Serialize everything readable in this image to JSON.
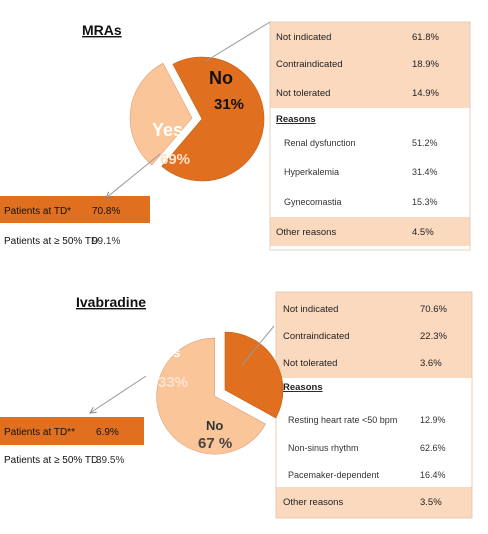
{
  "colors": {
    "dark": "#e07020",
    "light": "#fbc59a",
    "light_text": "#8a3c0a",
    "panel": "#fbd9bf"
  },
  "charts": [
    {
      "title": "MRAs",
      "chart_data": {
        "type": "pie",
        "slices": [
          {
            "label": "Yes",
            "value": 69,
            "value_label": "69%"
          },
          {
            "label": "No",
            "value": 31,
            "value_label": "31%"
          }
        ]
      },
      "not_used_breakdown": [
        {
          "label": "Not indicated",
          "value": "61.8%"
        },
        {
          "label": "Contraindicated",
          "value": "18.9%"
        },
        {
          "label": "Not tolerated",
          "value": "14.9%"
        }
      ],
      "reasons_heading": "Reasons",
      "reasons": [
        {
          "label": "Renal dysfunction",
          "value": "51.2%"
        },
        {
          "label": "Hyperkalemia",
          "value": "31.4%"
        },
        {
          "label": "Gynecomastia",
          "value": "15.3%"
        }
      ],
      "other_reasons": {
        "label": "Other reasons",
        "value": "4.5%"
      },
      "dose": [
        {
          "label": "Patients at  TD*",
          "value": "70.8%"
        },
        {
          "label": "Patients at ≥ 50% TD",
          "value": "99.1%"
        }
      ]
    },
    {
      "title": "Ivabradine",
      "chart_data": {
        "type": "pie",
        "slices": [
          {
            "label": "Yes",
            "value": 33,
            "value_label": "33%"
          },
          {
            "label": "No",
            "value": 67,
            "value_label": "67 %"
          }
        ]
      },
      "not_used_breakdown": [
        {
          "label": "Not indicated",
          "value": "70.6%"
        },
        {
          "label": "Contraindicated",
          "value": "22.3%"
        },
        {
          "label": "Not tolerated",
          "value": "3.6%"
        }
      ],
      "reasons_heading": "Reasons",
      "reasons": [
        {
          "label": "Resting heart rate <50 bpm",
          "value": "12.9%"
        },
        {
          "label": "Non-sinus rhythm",
          "value": "62.6%"
        },
        {
          "label": "Pacemaker-dependent",
          "value": "16.4%"
        }
      ],
      "other_reasons": {
        "label": "Other reasons",
        "value": "3.5%"
      },
      "dose": [
        {
          "label": "Patients at  TD**",
          "value": "6.9%"
        },
        {
          "label": "Patients at ≥ 50% TD",
          "value": "39.5%"
        }
      ]
    }
  ]
}
